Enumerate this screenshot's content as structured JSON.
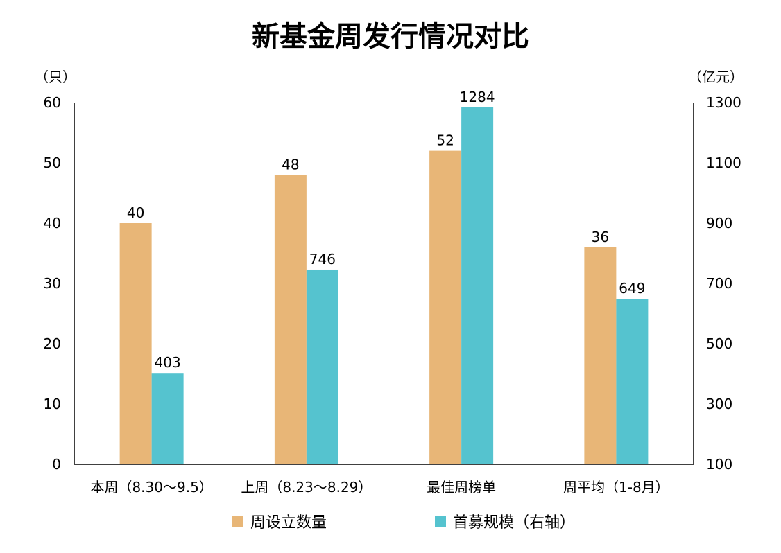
{
  "chart_data": {
    "type": "bar",
    "title": "新基金周发行情况对比",
    "categories": [
      "本周（8.30～9.5）",
      "上周（8.23～8.29）",
      "最佳周榜单",
      "周平均（1-8月）"
    ],
    "series": [
      {
        "name": "周设立数量",
        "axis": "left",
        "color": "#E8B677",
        "values": [
          40,
          48,
          52,
          36
        ]
      },
      {
        "name": "首募规模（右轴）",
        "axis": "right",
        "color": "#55C3CF",
        "values": [
          403,
          746,
          1284,
          649
        ]
      }
    ],
    "y_left": {
      "unit": "（只）",
      "ylim": [
        0,
        60
      ],
      "ticks": [
        0,
        10,
        20,
        30,
        40,
        50,
        60
      ]
    },
    "y_right": {
      "unit": "（亿元）",
      "ylim": [
        100,
        1300
      ],
      "ticks": [
        100,
        300,
        500,
        700,
        900,
        1100,
        1300
      ]
    },
    "grid": false,
    "legend_position": "bottom"
  }
}
